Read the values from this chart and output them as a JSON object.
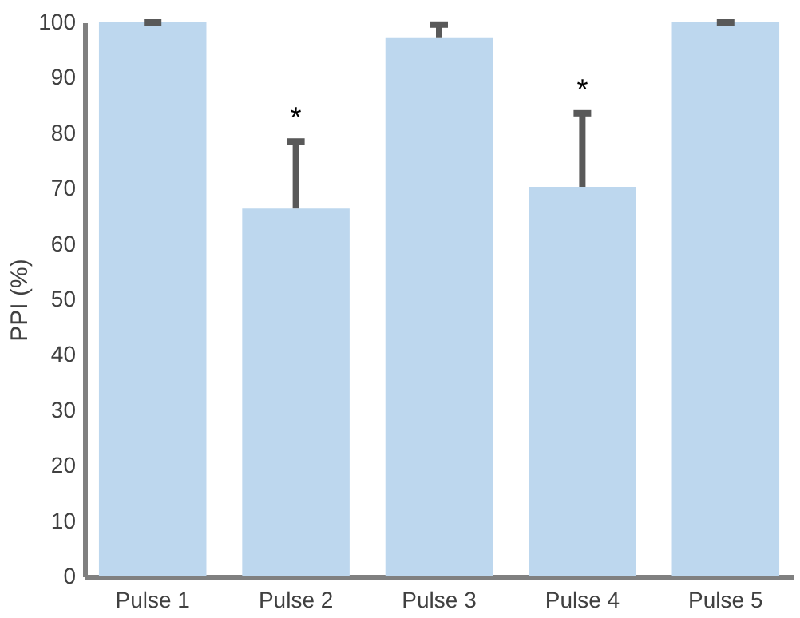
{
  "chart_data": {
    "type": "bar",
    "ylabel": "PPI (%)",
    "categories": [
      "Pulse 1",
      "Pulse 2",
      "Pulse 3",
      "Pulse 4",
      "Pulse 5"
    ],
    "values": [
      100,
      66.4,
      97.3,
      70.3,
      100
    ],
    "errors": [
      [
        100,
        100
      ],
      [
        66.4,
        78.5
      ],
      [
        97.3,
        99.6
      ],
      [
        70.3,
        83.6
      ],
      [
        100,
        100
      ]
    ],
    "color": "#bdd7ee",
    "ylim": [
      0,
      100
    ],
    "yticks": [
      0,
      10,
      20,
      30,
      40,
      50,
      60,
      70,
      80,
      90,
      100
    ],
    "grid": false,
    "annotations": [
      {
        "text": "*",
        "x": "Pulse 2",
        "y": 78.5
      },
      {
        "text": "*",
        "x": "Pulse 4",
        "y": 83.6
      }
    ]
  }
}
